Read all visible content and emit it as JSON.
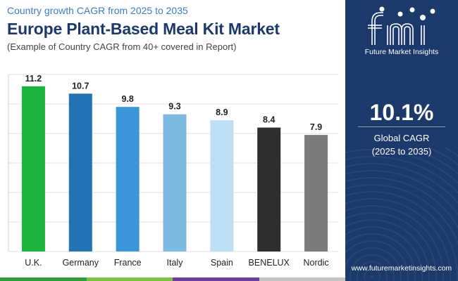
{
  "header": {
    "subtitle": "Country growth CAGR from 2025 to 2035",
    "title": "Europe Plant-Based Meal Kit Market",
    "note": "(Example of Country CAGR from 40+ covered in Report)"
  },
  "panel": {
    "logo_text": "Future Market Insights",
    "cagr_value": "10.1%",
    "cagr_label_line1": "Global CAGR",
    "cagr_label_line2": "(2025 to 2035)",
    "website": "www.futuremarketinsights.com"
  },
  "colors": {
    "panel_bg": "#1b3a6b",
    "title": "#1b3a6b",
    "subtitle": "#3d7dbd",
    "bottom_bar": [
      "#2e9e3e",
      "#7cc242",
      "#6b3fa0",
      "#c4c4c4"
    ]
  },
  "chart_data": {
    "type": "bar",
    "title": "Europe Plant-Based Meal Kit Market",
    "xlabel": "",
    "ylabel": "",
    "ylim": [
      0,
      12
    ],
    "grid": true,
    "categories": [
      "U.K.",
      "Germany",
      "France",
      "Italy",
      "Spain",
      "BENELUX",
      "Nordic"
    ],
    "values": [
      11.2,
      10.7,
      9.8,
      9.3,
      8.9,
      8.4,
      7.9
    ],
    "value_labels": [
      "11.2",
      "10.7",
      "9.8",
      "9.3",
      "8.9",
      "8.4",
      "7.9"
    ],
    "bar_colors": [
      "#1db33f",
      "#2173b4",
      "#3a96d6",
      "#7eb9e2",
      "#bde0f5",
      "#2e2e2e",
      "#7b7b7b"
    ]
  }
}
